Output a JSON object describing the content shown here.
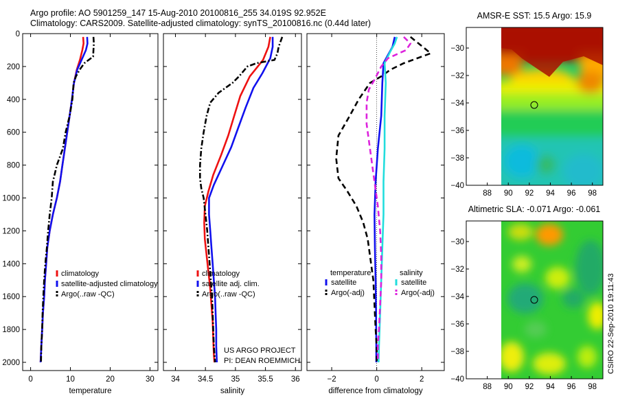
{
  "header": {
    "line1": "Argo profile: AO 5901259_147 15-Aug-2010 20100816_255 34.019S 92.952E",
    "line2": "Climatology: CARS2009. Satellite-adjusted climatology: synTS_20100816.nc (0.44d later)"
  },
  "credit": {
    "line1": "US ARGO PROJECT",
    "line2": "PI: DEAN ROEMMICH"
  },
  "side_stamp": "CSIRO 22-Sep-2010 19:11:43",
  "colors": {
    "climatology": "#ee1111",
    "satellite": "#1111ee",
    "argo": "#000000",
    "satellite_salinity": "#22dddd",
    "argo_salinity": "#dd22dd"
  },
  "chart_data": [
    {
      "type": "line",
      "xlabel": "temperature",
      "ylabel": "",
      "xlim": [
        -2,
        32
      ],
      "ylim": [
        2050,
        0
      ],
      "xticks": [
        0,
        10,
        20,
        30
      ],
      "yticks": [
        0,
        200,
        400,
        600,
        800,
        1000,
        1200,
        1400,
        1600,
        1800,
        2000
      ],
      "legend": [
        "climatology",
        "satellite-adjusted climatology",
        "Argo(..raw -QC)"
      ],
      "series": [
        {
          "name": "climatology",
          "points": [
            [
              13.2,
              20
            ],
            [
              13.3,
              60
            ],
            [
              13.0,
              100
            ],
            [
              12.4,
              160
            ],
            [
              11.6,
              220
            ],
            [
              10.9,
              300
            ],
            [
              10.4,
              400
            ],
            [
              9.8,
              500
            ],
            [
              9.2,
              600
            ],
            [
              8.6,
              700
            ],
            [
              8.0,
              800
            ],
            [
              7.4,
              900
            ],
            [
              6.6,
              1000
            ],
            [
              5.6,
              1100
            ],
            [
              4.8,
              1200
            ],
            [
              4.2,
              1300
            ],
            [
              3.9,
              1400
            ],
            [
              3.6,
              1500
            ],
            [
              3.4,
              1600
            ],
            [
              3.1,
              1700
            ],
            [
              2.9,
              1800
            ],
            [
              2.7,
              1900
            ],
            [
              2.5,
              2000
            ]
          ]
        },
        {
          "name": "satellite-adjusted climatology",
          "points": [
            [
              14.2,
              20
            ],
            [
              14.3,
              60
            ],
            [
              13.9,
              100
            ],
            [
              12.8,
              160
            ],
            [
              11.7,
              220
            ],
            [
              10.9,
              300
            ],
            [
              10.4,
              400
            ],
            [
              9.8,
              500
            ],
            [
              9.2,
              600
            ],
            [
              8.6,
              700
            ],
            [
              8.0,
              800
            ],
            [
              7.4,
              900
            ],
            [
              6.6,
              1000
            ],
            [
              5.6,
              1100
            ],
            [
              4.8,
              1200
            ],
            [
              4.2,
              1300
            ],
            [
              3.9,
              1400
            ],
            [
              3.6,
              1500
            ],
            [
              3.4,
              1600
            ],
            [
              3.1,
              1700
            ],
            [
              2.9,
              1800
            ],
            [
              2.7,
              1900
            ],
            [
              2.5,
              2000
            ]
          ]
        },
        {
          "name": "Argo(..raw -QC)",
          "points": [
            [
              15.8,
              20
            ],
            [
              15.9,
              60
            ],
            [
              15.8,
              100
            ],
            [
              15.7,
              140
            ],
            [
              13.5,
              180
            ],
            [
              12.3,
              220
            ],
            [
              11.4,
              260
            ],
            [
              10.8,
              300
            ],
            [
              10.5,
              400
            ],
            [
              9.8,
              500
            ],
            [
              8.8,
              600
            ],
            [
              8.1,
              700
            ],
            [
              6.6,
              800
            ],
            [
              6.0,
              860
            ],
            [
              5.6,
              900
            ],
            [
              5.3,
              1000
            ],
            [
              4.8,
              1100
            ],
            [
              4.4,
              1200
            ],
            [
              4.1,
              1300
            ],
            [
              3.7,
              1400
            ],
            [
              3.4,
              1500
            ],
            [
              3.2,
              1600
            ],
            [
              3.0,
              1700
            ],
            [
              2.9,
              1800
            ],
            [
              2.7,
              1900
            ],
            [
              2.6,
              2000
            ]
          ]
        }
      ]
    },
    {
      "type": "line",
      "xlabel": "salinity",
      "ylabel": "",
      "xlim": [
        33.8,
        36.1
      ],
      "ylim": [
        2050,
        0
      ],
      "xticks": [
        34,
        34.5,
        35,
        35.5,
        36
      ],
      "yticks": [
        0,
        200,
        400,
        600,
        800,
        1000,
        1200,
        1400,
        1600,
        1800,
        2000
      ],
      "legend": [
        "climatology",
        "satellite adj. clim.",
        "Argo(..raw -QC)"
      ],
      "series": [
        {
          "name": "climatology",
          "points": [
            [
              35.58,
              20
            ],
            [
              35.55,
              80
            ],
            [
              35.46,
              160
            ],
            [
              35.24,
              260
            ],
            [
              35.08,
              380
            ],
            [
              34.98,
              500
            ],
            [
              34.88,
              620
            ],
            [
              34.76,
              740
            ],
            [
              34.63,
              860
            ],
            [
              34.55,
              960
            ],
            [
              34.49,
              1050
            ],
            [
              34.48,
              1150
            ],
            [
              34.49,
              1250
            ],
            [
              34.52,
              1350
            ],
            [
              34.55,
              1450
            ],
            [
              34.58,
              1550
            ],
            [
              34.6,
              1650
            ],
            [
              34.62,
              1750
            ],
            [
              34.63,
              1850
            ],
            [
              34.64,
              1950
            ],
            [
              34.65,
              2000
            ]
          ]
        },
        {
          "name": "satellite adj. clim.",
          "points": [
            [
              35.62,
              20
            ],
            [
              35.62,
              80
            ],
            [
              35.58,
              150
            ],
            [
              35.45,
              240
            ],
            [
              35.3,
              330
            ],
            [
              35.17,
              450
            ],
            [
              35.05,
              570
            ],
            [
              34.93,
              690
            ],
            [
              34.78,
              810
            ],
            [
              34.64,
              920
            ],
            [
              34.56,
              1000
            ],
            [
              34.56,
              1100
            ],
            [
              34.58,
              1200
            ],
            [
              34.6,
              1300
            ],
            [
              34.62,
              1400
            ],
            [
              34.64,
              1500
            ],
            [
              34.66,
              1600
            ],
            [
              34.67,
              1700
            ],
            [
              34.68,
              1800
            ],
            [
              34.68,
              1900
            ],
            [
              34.69,
              2000
            ]
          ]
        },
        {
          "name": "Argo(..raw -QC)",
          "points": [
            [
              35.78,
              20
            ],
            [
              35.72,
              80
            ],
            [
              35.7,
              120
            ],
            [
              35.65,
              160
            ],
            [
              35.35,
              180
            ],
            [
              35.2,
              200
            ],
            [
              35.06,
              260
            ],
            [
              34.95,
              300
            ],
            [
              34.72,
              360
            ],
            [
              34.58,
              420
            ],
            [
              34.52,
              500
            ],
            [
              34.47,
              600
            ],
            [
              34.43,
              700
            ],
            [
              34.41,
              800
            ],
            [
              34.41,
              880
            ],
            [
              34.43,
              940
            ],
            [
              34.47,
              1000
            ],
            [
              34.5,
              1100
            ],
            [
              34.53,
              1200
            ],
            [
              34.55,
              1300
            ],
            [
              34.57,
              1400
            ],
            [
              34.59,
              1500
            ],
            [
              34.61,
              1600
            ],
            [
              34.62,
              1700
            ],
            [
              34.63,
              1800
            ],
            [
              34.64,
              1900
            ],
            [
              34.66,
              2000
            ]
          ]
        }
      ]
    },
    {
      "type": "line",
      "xlabel": "difference from climatology",
      "ylabel": "",
      "xlim": [
        -3.1,
        3.0
      ],
      "ylim": [
        2050,
        0
      ],
      "xticks": [
        -2,
        0,
        2
      ],
      "yticks": [
        0,
        200,
        400,
        600,
        800,
        1000,
        1200,
        1400,
        1600,
        1800,
        2000
      ],
      "legend_headers": [
        "temperature",
        "salinity"
      ],
      "legend": [
        "satellite",
        "Argo(-adj)",
        "satellite",
        "Argo(-adj)"
      ],
      "series": [
        {
          "name": "satellite",
          "group": "temperature",
          "points": [
            [
              0.8,
              20
            ],
            [
              0.7,
              80
            ],
            [
              0.5,
              130
            ],
            [
              0.3,
              180
            ],
            [
              0.25,
              300
            ],
            [
              0.2,
              500
            ],
            [
              0.05,
              700
            ],
            [
              -0.05,
              900
            ],
            [
              -0.1,
              1100
            ],
            [
              -0.08,
              1300
            ],
            [
              -0.05,
              1500
            ],
            [
              -0.03,
              1700
            ],
            [
              -0.02,
              1900
            ],
            [
              -0.02,
              2000
            ]
          ]
        },
        {
          "name": "Argo(-adj)",
          "group": "temperature",
          "points": [
            [
              1.5,
              20
            ],
            [
              2.4,
              120
            ],
            [
              1.2,
              180
            ],
            [
              0.6,
              220
            ],
            [
              0.2,
              260
            ],
            [
              -0.3,
              300
            ],
            [
              -0.8,
              400
            ],
            [
              -1.2,
              500
            ],
            [
              -1.7,
              620
            ],
            [
              -1.8,
              760
            ],
            [
              -1.7,
              880
            ],
            [
              -1.3,
              960
            ],
            [
              -0.9,
              1050
            ],
            [
              -0.6,
              1150
            ],
            [
              -0.4,
              1250
            ],
            [
              -0.25,
              1400
            ],
            [
              -0.15,
              1500
            ],
            [
              -0.1,
              1650
            ],
            [
              -0.05,
              1800
            ],
            [
              0.0,
              1900
            ],
            [
              0.0,
              2000
            ]
          ]
        },
        {
          "name": "satellite",
          "group": "salinity",
          "points": [
            [
              0.9,
              20
            ],
            [
              0.8,
              60
            ],
            [
              0.6,
              110
            ],
            [
              0.35,
              180
            ],
            [
              0.4,
              300
            ],
            [
              0.35,
              500
            ],
            [
              0.35,
              700
            ],
            [
              0.3,
              900
            ],
            [
              0.3,
              1100
            ],
            [
              0.25,
              1300
            ],
            [
              0.2,
              1500
            ],
            [
              0.15,
              1700
            ],
            [
              0.1,
              1900
            ],
            [
              0.08,
              2000
            ]
          ]
        },
        {
          "name": "Argo(-adj)",
          "group": "salinity",
          "points": [
            [
              1.2,
              20
            ],
            [
              1.5,
              60
            ],
            [
              1.3,
              100
            ],
            [
              0.5,
              150
            ],
            [
              0.2,
              200
            ],
            [
              -0.1,
              280
            ],
            [
              -0.35,
              340
            ],
            [
              -0.45,
              420
            ],
            [
              -0.45,
              550
            ],
            [
              -0.3,
              700
            ],
            [
              -0.15,
              850
            ],
            [
              -0.05,
              950
            ],
            [
              0.05,
              1050
            ],
            [
              0.15,
              1200
            ],
            [
              0.2,
              1350
            ],
            [
              0.2,
              1500
            ],
            [
              0.15,
              1650
            ],
            [
              0.1,
              1800
            ],
            [
              0.05,
              1900
            ],
            [
              0.05,
              2000
            ]
          ]
        }
      ]
    },
    {
      "type": "heatmap",
      "title": "AMSR-E SST: 15.5 Argo: 15.9",
      "xlabel": "",
      "ylabel": "",
      "xlim": [
        86,
        99
      ],
      "ylim": [
        -40,
        -28.5
      ],
      "xticks": [
        88,
        90,
        92,
        94,
        96,
        98
      ],
      "yticks": [
        -30,
        -32,
        -34,
        -36,
        -38,
        -40
      ],
      "data_extent": {
        "lon": [
          90,
          99
        ],
        "lat": [
          -40,
          -28.5
        ]
      },
      "marker": {
        "lon": 92.952,
        "lat": -34.019
      }
    },
    {
      "type": "heatmap",
      "title": "Altimetric SLA: -0.071 Argo: -0.061",
      "xlabel": "",
      "ylabel": "",
      "xlim": [
        86,
        99
      ],
      "ylim": [
        -40,
        -28.5
      ],
      "xticks": [
        88,
        90,
        92,
        94,
        96,
        98
      ],
      "yticks": [
        -30,
        -32,
        -34,
        -36,
        -38,
        -40
      ],
      "data_extent": {
        "lon": [
          90,
          99
        ],
        "lat": [
          -40,
          -28.5
        ]
      },
      "marker": {
        "lon": 92.952,
        "lat": -34.019
      }
    }
  ]
}
